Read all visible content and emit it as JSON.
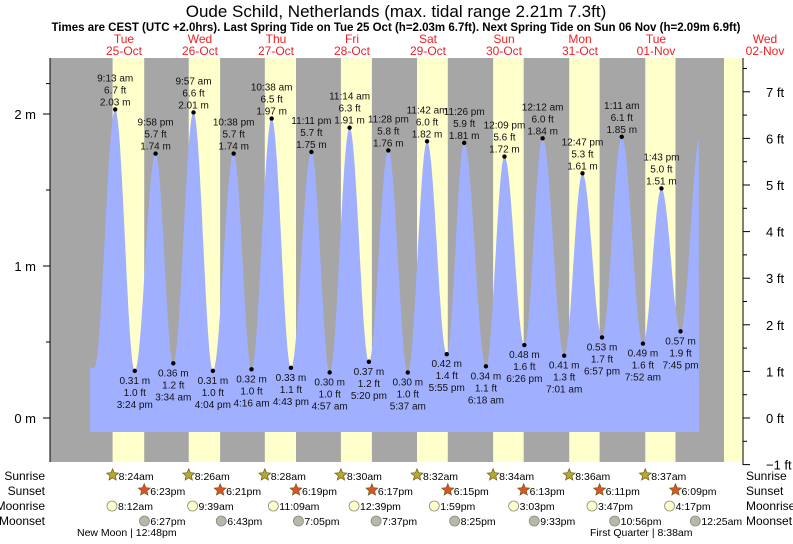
{
  "chart_data": {
    "type": "area",
    "title": "Oude Schild, Netherlands (max. tidal range 2.21m 7.3ft)",
    "subtitle": "Times are CEST (UTC +2.0hrs). Last Spring Tide on Tue 25 Oct (h=2.03m 6.7ft). Next Spring Tide on Sun 06 Nov (h=2.09m 6.9ft)",
    "days": [
      {
        "name": "Tue",
        "date": "25-Oct"
      },
      {
        "name": "Wed",
        "date": "26-Oct"
      },
      {
        "name": "Thu",
        "date": "27-Oct"
      },
      {
        "name": "Fri",
        "date": "28-Oct"
      },
      {
        "name": "Sat",
        "date": "29-Oct"
      },
      {
        "name": "Sun",
        "date": "30-Oct"
      },
      {
        "name": "Mon",
        "date": "31-Oct"
      },
      {
        "name": "Tue",
        "date": "01-Nov"
      },
      {
        "name": "Wed",
        "date": "02-Nov"
      }
    ],
    "y_left": {
      "unit": "m",
      "ticks": [
        "0 m",
        "1 m",
        "2 m"
      ],
      "values": [
        0,
        1,
        2
      ],
      "ylim_m": [
        -0.29,
        2.36
      ]
    },
    "y_right": {
      "unit": "ft",
      "ticks": [
        "−1 ft",
        "0 ft",
        "1 ft",
        "2 ft",
        "3 ft",
        "4 ft",
        "5 ft",
        "6 ft",
        "7 ft"
      ],
      "values": [
        -1,
        0,
        1,
        2,
        3,
        4,
        5,
        6,
        7
      ]
    },
    "tides": [
      {
        "type": "high",
        "day": 0,
        "time": "9:13 am",
        "ft": "6.7 ft",
        "m": "2.03 m",
        "value": 2.03
      },
      {
        "type": "low",
        "day": 0,
        "time": "3:24 pm",
        "ft": "1.0 ft",
        "m": "0.31 m",
        "value": 0.31
      },
      {
        "type": "high",
        "day": 0,
        "time": "9:58 pm",
        "ft": "5.7 ft",
        "m": "1.74 m",
        "value": 1.74
      },
      {
        "type": "low",
        "day": 1,
        "time": "3:34 am",
        "ft": "1.2 ft",
        "m": "0.36 m",
        "value": 0.36
      },
      {
        "type": "high",
        "day": 1,
        "time": "9:57 am",
        "ft": "6.6 ft",
        "m": "2.01 m",
        "value": 2.01
      },
      {
        "type": "low",
        "day": 1,
        "time": "4:04 pm",
        "ft": "1.0 ft",
        "m": "0.31 m",
        "value": 0.31
      },
      {
        "type": "high",
        "day": 1,
        "time": "10:38 pm",
        "ft": "5.7 ft",
        "m": "1.74 m",
        "value": 1.74
      },
      {
        "type": "low",
        "day": 2,
        "time": "4:16 am",
        "ft": "1.0 ft",
        "m": "0.32 m",
        "value": 0.32
      },
      {
        "type": "high",
        "day": 2,
        "time": "10:38 am",
        "ft": "6.5 ft",
        "m": "1.97 m",
        "value": 1.97
      },
      {
        "type": "low",
        "day": 2,
        "time": "4:43 pm",
        "ft": "1.1 ft",
        "m": "0.33 m",
        "value": 0.33
      },
      {
        "type": "high",
        "day": 2,
        "time": "11:11 pm",
        "ft": "5.7 ft",
        "m": "1.75 m",
        "value": 1.75
      },
      {
        "type": "low",
        "day": 3,
        "time": "4:57 am",
        "ft": "1.0 ft",
        "m": "0.30 m",
        "value": 0.3
      },
      {
        "type": "high",
        "day": 3,
        "time": "11:14 am",
        "ft": "6.3 ft",
        "m": "1.91 m",
        "value": 1.91
      },
      {
        "type": "low",
        "day": 3,
        "time": "5:20 pm",
        "ft": "1.2 ft",
        "m": "0.37 m",
        "value": 0.37
      },
      {
        "type": "high",
        "day": 3,
        "time": "11:28 pm",
        "ft": "5.8 ft",
        "m": "1.76 m",
        "value": 1.76
      },
      {
        "type": "low",
        "day": 4,
        "time": "5:37 am",
        "ft": "1.0 ft",
        "m": "0.30 m",
        "value": 0.3
      },
      {
        "type": "high",
        "day": 4,
        "time": "11:42 am",
        "ft": "6.0 ft",
        "m": "1.82 m",
        "value": 1.82
      },
      {
        "type": "low",
        "day": 4,
        "time": "5:55 pm",
        "ft": "1.4 ft",
        "m": "0.42 m",
        "value": 0.42
      },
      {
        "type": "high",
        "day": 4,
        "time": "11:26 pm",
        "ft": "5.9 ft",
        "m": "1.81 m",
        "value": 1.81
      },
      {
        "type": "low",
        "day": 5,
        "time": "6:18 am",
        "ft": "1.1 ft",
        "m": "0.34 m",
        "value": 0.34
      },
      {
        "type": "high",
        "day": 5,
        "time": "12:09 pm",
        "ft": "5.6 ft",
        "m": "1.72 m",
        "value": 1.72
      },
      {
        "type": "low",
        "day": 5,
        "time": "6:26 pm",
        "ft": "1.6 ft",
        "m": "0.48 m",
        "value": 0.48
      },
      {
        "type": "high",
        "day": 6,
        "time": "12:12 am",
        "ft": "6.0 ft",
        "m": "1.84 m",
        "value": 1.84
      },
      {
        "type": "low",
        "day": 6,
        "time": "7:01 am",
        "ft": "1.3 ft",
        "m": "0.41 m",
        "value": 0.41
      },
      {
        "type": "high",
        "day": 6,
        "time": "12:47 pm",
        "ft": "5.3 ft",
        "m": "1.61 m",
        "value": 1.61
      },
      {
        "type": "low",
        "day": 6,
        "time": "6:57 pm",
        "ft": "1.7 ft",
        "m": "0.53 m",
        "value": 0.53
      },
      {
        "type": "high",
        "day": 7,
        "time": "1:11 am",
        "ft": "6.1 ft",
        "m": "1.85 m",
        "value": 1.85
      },
      {
        "type": "low",
        "day": 7,
        "time": "7:52 am",
        "ft": "1.6 ft",
        "m": "0.49 m",
        "value": 0.49
      },
      {
        "type": "high",
        "day": 7,
        "time": "1:43 pm",
        "ft": "5.0 ft",
        "m": "1.51 m",
        "value": 1.51
      },
      {
        "type": "low",
        "day": 7,
        "time": "7:45 pm",
        "ft": "1.9 ft",
        "m": "0.57 m",
        "value": 0.57
      }
    ],
    "rows": {
      "labels": {
        "sunrise": "Sunrise",
        "sunset": "Sunset",
        "moonrise": "Moonrise",
        "moonset": "Moonset"
      },
      "sunrise": [
        {
          "day": 0,
          "time": "8:24am"
        },
        {
          "day": 1,
          "time": "8:26am"
        },
        {
          "day": 2,
          "time": "8:28am"
        },
        {
          "day": 3,
          "time": "8:30am"
        },
        {
          "day": 4,
          "time": "8:32am"
        },
        {
          "day": 5,
          "time": "8:34am"
        },
        {
          "day": 6,
          "time": "8:36am"
        },
        {
          "day": 7,
          "time": "8:37am"
        }
      ],
      "sunset": [
        {
          "day": 0,
          "time": "6:23pm"
        },
        {
          "day": 1,
          "time": "6:21pm"
        },
        {
          "day": 2,
          "time": "6:19pm"
        },
        {
          "day": 3,
          "time": "6:17pm"
        },
        {
          "day": 4,
          "time": "6:15pm"
        },
        {
          "day": 5,
          "time": "6:13pm"
        },
        {
          "day": 6,
          "time": "6:11pm"
        },
        {
          "day": 7,
          "time": "6:09pm"
        }
      ],
      "moonrise": [
        {
          "day": 0,
          "time": "8:12am"
        },
        {
          "day": 1,
          "time": "9:39am"
        },
        {
          "day": 2,
          "time": "11:09am"
        },
        {
          "day": 3,
          "time": "12:39pm"
        },
        {
          "day": 4,
          "time": "1:59pm"
        },
        {
          "day": 5,
          "time": "3:03pm"
        },
        {
          "day": 6,
          "time": "3:47pm"
        },
        {
          "day": 7,
          "time": "4:17pm"
        }
      ],
      "moonset": [
        {
          "day": 0,
          "time": "6:27pm"
        },
        {
          "day": 1,
          "time": "6:43pm"
        },
        {
          "day": 2,
          "time": "7:05pm"
        },
        {
          "day": 3,
          "time": "7:37pm"
        },
        {
          "day": 4,
          "time": "8:25pm"
        },
        {
          "day": 5,
          "time": "9:33pm"
        },
        {
          "day": 6,
          "time": "10:56pm"
        },
        {
          "day": 8,
          "time": "12:25am"
        }
      ]
    },
    "moon_phases": [
      {
        "label": "New Moon | 12:48pm"
      },
      {
        "label": "First Quarter | 8:38am"
      }
    ],
    "colors": {
      "water": "#a0b0ff",
      "night": "#a6a6a6",
      "day": "#ffffcc",
      "day_label": "#ee2222",
      "sunrise_star": "#b8a830",
      "sunset_star": "#e0502a",
      "moonrise": "#ffffc8",
      "moonset": "#b8b8a8"
    }
  }
}
